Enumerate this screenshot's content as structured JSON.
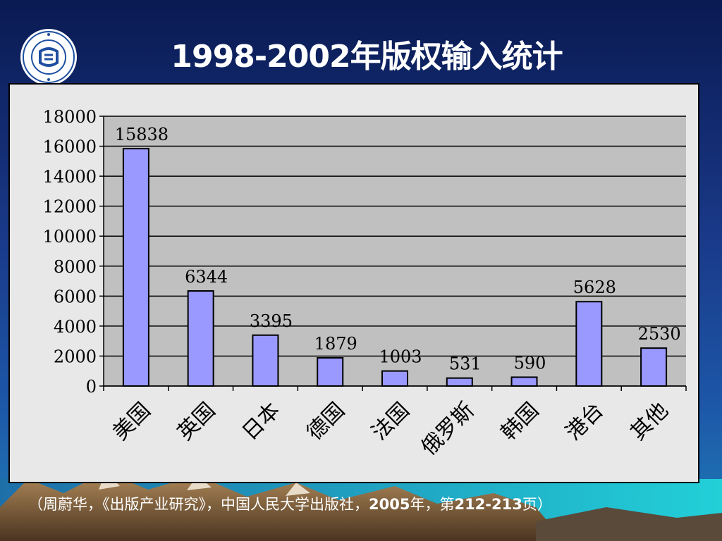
{
  "slide": {
    "title": "1998-2002年版权输入统计",
    "citation_parts": [
      "（周蔚华，《出版产业研究》，中国人民大学出版社，",
      "2005",
      "年，第",
      "212-213",
      "页）"
    ]
  },
  "logo": {
    "icon": "university-seal-icon",
    "color": "#1f4fa0"
  },
  "colors": {
    "bar_fill": "#9999ff",
    "plot_bg": "#c0c0c0",
    "panel_bg": "#e8e8e8"
  },
  "chart_data": {
    "type": "bar",
    "title": "",
    "xlabel": "",
    "ylabel": "",
    "categories": [
      "美国",
      "英国",
      "日本",
      "德国",
      "法国",
      "俄罗斯",
      "韩国",
      "港台",
      "其他"
    ],
    "values": [
      15838,
      6344,
      3395,
      1879,
      1003,
      531,
      590,
      5628,
      2530
    ],
    "value_labels": [
      "15838",
      "6344",
      "3395",
      "1879",
      "1003",
      "531",
      "590",
      "5628",
      "2530"
    ],
    "ylim": [
      0,
      18000
    ],
    "yticks": [
      0,
      2000,
      4000,
      6000,
      8000,
      10000,
      12000,
      14000,
      16000,
      18000
    ],
    "ytick_labels": [
      "0",
      "2000",
      "4000",
      "6000",
      "8000",
      "10000",
      "12000",
      "14000",
      "16000",
      "18000"
    ],
    "grid": true,
    "legend": "none"
  }
}
